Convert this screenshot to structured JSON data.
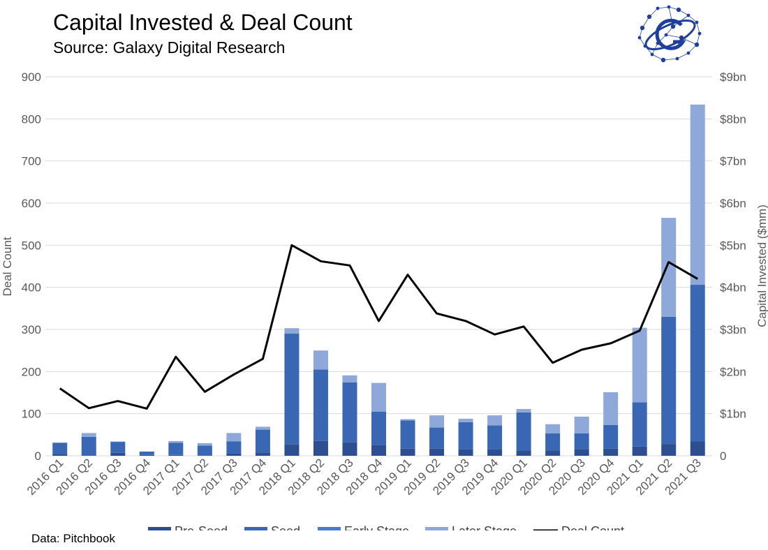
{
  "header": {
    "title": "Capital Invested & Deal Count",
    "subtitle": "Source: Galaxy Digital Research"
  },
  "footer": {
    "source_note": "Data: Pitchbook"
  },
  "logo": {
    "icon": "galaxy-network-logo-icon"
  },
  "colors": {
    "pre_seed": "#2e4f8f",
    "seed": "#3a67b4",
    "early_stage": "#4a7bcc",
    "later_stage": "#8fa8da",
    "deal_count": "#000000",
    "grid": "#d9d9d9",
    "logo": "#1f3f9c"
  },
  "chart_data": {
    "type": "bar",
    "stacked": true,
    "title": "Capital Invested & Deal Count",
    "ylabel": "Deal Count",
    "y2label": "Capital Invested ($mm)",
    "ylim": [
      0,
      900
    ],
    "y2lim": [
      0,
      9000
    ],
    "yticks": [
      "0",
      "100",
      "200",
      "300",
      "400",
      "500",
      "600",
      "700",
      "800",
      "900"
    ],
    "y2ticks": [
      "0",
      "$1bn",
      "$2bn",
      "$3bn",
      "$4bn",
      "$5bn",
      "$6bn",
      "$7bn",
      "$8bn",
      "$9bn"
    ],
    "grid": true,
    "legend_position": "bottom",
    "categories": [
      "2016 Q1",
      "2016 Q2",
      "2016 Q3",
      "2016 Q4",
      "2017 Q1",
      "2017 Q2",
      "2017 Q3",
      "2017 Q4",
      "2018 Q1",
      "2018 Q2",
      "2018 Q3",
      "2018 Q4",
      "2019 Q1",
      "2019 Q2",
      "2019 Q3",
      "2019 Q4",
      "2020 Q1",
      "2020 Q2",
      "2020 Q3",
      "2020 Q4",
      "2021 Q1",
      "2021 Q2",
      "2021 Q3"
    ],
    "series": [
      {
        "name": "Pre-Seed",
        "key": "pre_seed",
        "axis": "right",
        "kind": "bar",
        "values": [
          40,
          10,
          70,
          20,
          20,
          10,
          50,
          80,
          270,
          350,
          320,
          250,
          170,
          170,
          150,
          150,
          130,
          130,
          160,
          170,
          220,
          280,
          340
        ]
      },
      {
        "name": "Seed",
        "key": "seed",
        "axis": "right",
        "kind": "bar",
        "values": [
          270,
          440,
          260,
          80,
          290,
          230,
          290,
          540,
          2630,
          1700,
          1420,
          800,
          670,
          500,
          650,
          570,
          900,
          400,
          370,
          560,
          1050,
          3020,
          3720
        ]
      },
      {
        "name": "Early Stage",
        "key": "early_stage",
        "axis": "right",
        "kind": "bar",
        "values": [
          0,
          0,
          0,
          0,
          0,
          0,
          0,
          0,
          0,
          0,
          0,
          0,
          0,
          0,
          0,
          0,
          0,
          0,
          0,
          0,
          0,
          0,
          0
        ]
      },
      {
        "name": "Later Stage",
        "key": "later_stage",
        "axis": "right",
        "kind": "bar",
        "values": [
          0,
          90,
          10,
          0,
          40,
          60,
          200,
          70,
          130,
          450,
          170,
          680,
          30,
          290,
          80,
          240,
          80,
          220,
          400,
          780,
          1770,
          2350,
          4280
        ]
      },
      {
        "name": "Deal Count",
        "key": "deal_count",
        "axis": "left",
        "kind": "line",
        "values": [
          160,
          113,
          130,
          112,
          235,
          152,
          193,
          230,
          500,
          462,
          452,
          320,
          430,
          338,
          320,
          288,
          307,
          221,
          252,
          267,
          297,
          460,
          420
        ]
      }
    ]
  }
}
